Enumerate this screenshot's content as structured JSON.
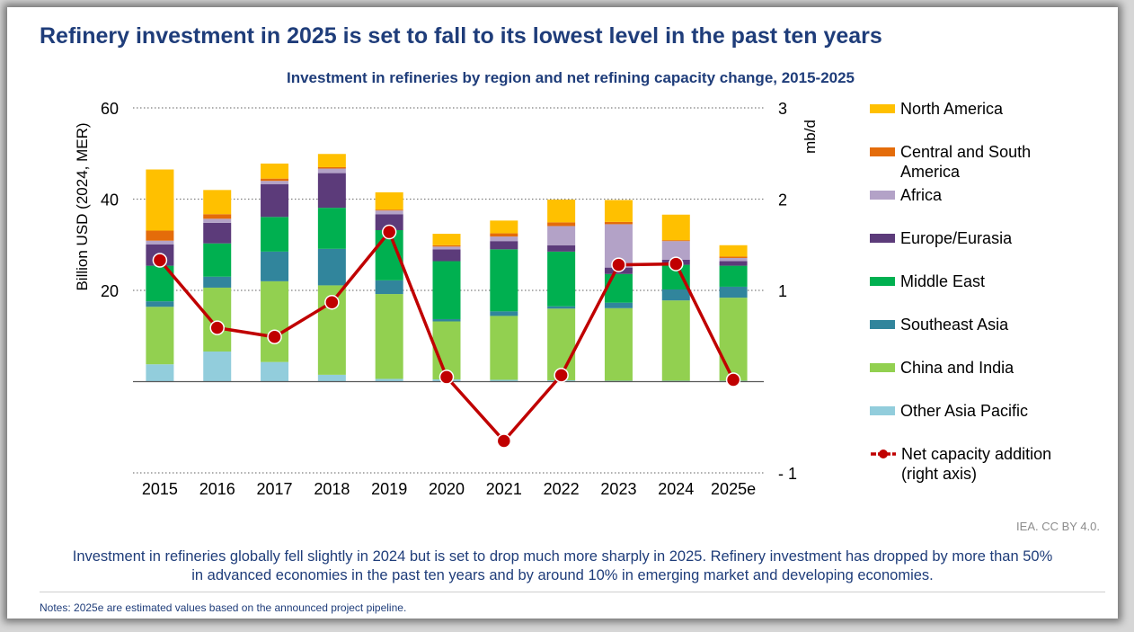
{
  "headline": "Refinery investment in 2025 is set to fall to its lowest level in the past ten years",
  "source": "IEA. CC BY 4.0.",
  "summary_line1": "Investment in refineries globally fell slightly in 2024 but is set to drop much more sharply in 2025. Refinery investment has dropped by more than 50%",
  "summary_line2": "in advanced economies in the past ten years and by around 10% in emerging market and developing economies.",
  "notes": "Notes: 2025e are estimated values based on the announced project pipeline.",
  "chart_data": {
    "type": "bar",
    "title": "Investment in refineries by region and net refining capacity change, 2015-2025",
    "ylabel": "Billion USD (2024, MER)",
    "y2label": "mb/d",
    "ylim": [
      -20,
      60
    ],
    "y2lim": [
      -1,
      3
    ],
    "yticks": [
      {
        "value": 60,
        "label": "60"
      },
      {
        "value": 40,
        "label": "40"
      },
      {
        "value": 20,
        "label": "20"
      }
    ],
    "y2ticks": [
      {
        "value": 3,
        "label": "3"
      },
      {
        "value": 2,
        "label": "2"
      },
      {
        "value": 1,
        "label": "1"
      },
      {
        "value": -1,
        "label": "- 1"
      }
    ],
    "grid": true,
    "legend_position": "right",
    "categories": [
      "2015",
      "2016",
      "2017",
      "2018",
      "2019",
      "2020",
      "2021",
      "2022",
      "2023",
      "2024",
      "2025e"
    ],
    "series": [
      {
        "name": "Other Asia Pacific",
        "color": "#92cddc",
        "values": [
          3.8,
          6.6,
          4.3,
          1.5,
          0.6,
          0.5,
          0.4,
          0.3,
          0.2,
          0.2,
          0.2
        ]
      },
      {
        "name": "China and India",
        "color": "#92d050",
        "values": [
          12.6,
          14.0,
          17.7,
          19.6,
          18.6,
          12.7,
          14.0,
          15.7,
          15.9,
          17.6,
          18.2
        ]
      },
      {
        "name": "Southeast Asia",
        "color": "#31859c",
        "values": [
          1.2,
          2.4,
          6.5,
          8.0,
          3.0,
          0.5,
          1.0,
          0.5,
          1.2,
          2.4,
          2.4
        ]
      },
      {
        "name": "Middle East",
        "color": "#00b050",
        "values": [
          7.8,
          7.3,
          7.6,
          9.0,
          11.0,
          12.7,
          13.6,
          12.0,
          6.3,
          5.4,
          4.6
        ]
      },
      {
        "name": "Europe/Eurasia",
        "color": "#5c3b7a",
        "values": [
          4.7,
          4.5,
          7.2,
          7.6,
          3.5,
          2.6,
          1.8,
          1.4,
          1.4,
          1.1,
          1.0
        ]
      },
      {
        "name": "Africa",
        "color": "#b3a2c7",
        "values": [
          0.8,
          0.9,
          0.7,
          1.0,
          0.8,
          0.6,
          1.0,
          4.2,
          9.5,
          4.1,
          0.7
        ]
      },
      {
        "name": "Central and South America",
        "color": "#e46c0a",
        "values": [
          2.2,
          1.0,
          0.5,
          0.3,
          0.2,
          0.3,
          0.7,
          0.8,
          0.5,
          0.2,
          0.3
        ]
      },
      {
        "name": "North America",
        "color": "#ffc000",
        "values": [
          13.4,
          5.3,
          3.3,
          2.9,
          3.8,
          2.5,
          2.8,
          5.0,
          4.8,
          5.6,
          2.5
        ]
      }
    ],
    "line_series": {
      "name": "Net capacity addition (right axis)",
      "legend_line1": "Net capacity addition",
      "legend_line2": "(right axis)",
      "color": "#c00000",
      "axis": "right",
      "values": [
        1.33,
        0.59,
        0.49,
        0.87,
        1.64,
        0.05,
        -0.65,
        0.07,
        1.28,
        1.29,
        0.02
      ]
    },
    "legend": [
      {
        "line1": "North America",
        "line2": "",
        "color": "#ffc000"
      },
      {
        "line1": "Central and South",
        "line2": "America",
        "color": "#e46c0a"
      },
      {
        "line1": "Africa",
        "line2": "",
        "color": "#b3a2c7"
      },
      {
        "line1": "Europe/Eurasia",
        "line2": "",
        "color": "#5c3b7a"
      },
      {
        "line1": "Middle East",
        "line2": "",
        "color": "#00b050"
      },
      {
        "line1": "Southeast Asia",
        "line2": "",
        "color": "#31859c"
      },
      {
        "line1": "China and India",
        "line2": "",
        "color": "#92d050"
      },
      {
        "line1": "Other Asia Pacific",
        "line2": "",
        "color": "#92cddc"
      }
    ]
  }
}
